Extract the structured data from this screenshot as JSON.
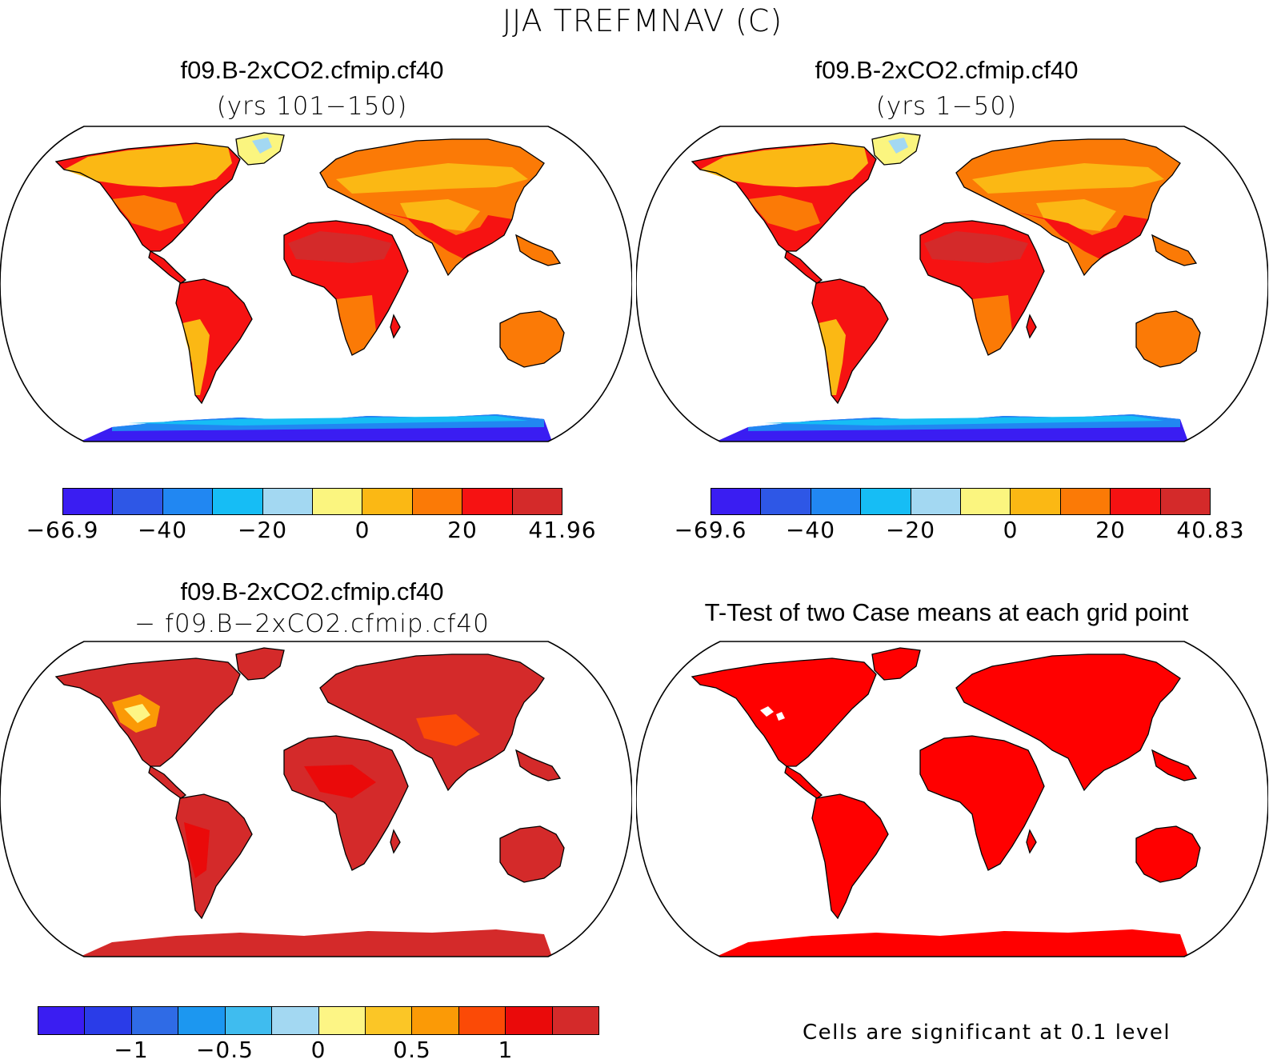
{
  "title": "JJA TREFMNAV (C)",
  "panels": [
    {
      "id": "case1",
      "line1": "f09.B-2xCO2.cfmip.cf40",
      "line2": "(yrs 101−150)",
      "palette": "field",
      "colorbar": {
        "colors": [
          "#3a1df2",
          "#2e57e6",
          "#2187f2",
          "#16bdf5",
          "#a3d8f2",
          "#fbf57f",
          "#fbb814",
          "#fb7a06",
          "#f61212",
          "#d42a2a"
        ],
        "ticks": [
          "−66.9",
          "−40",
          "−20",
          "0",
          "20",
          "41.96"
        ]
      }
    },
    {
      "id": "case2",
      "line1": "f09.B-2xCO2.cfmip.cf40",
      "line2": "(yrs 1−50)",
      "palette": "field",
      "colorbar": {
        "colors": [
          "#3a1df2",
          "#2e57e6",
          "#2187f2",
          "#16bdf5",
          "#a3d8f2",
          "#fbf57f",
          "#fbb814",
          "#fb7a06",
          "#f61212",
          "#d42a2a"
        ],
        "ticks": [
          "−69.6",
          "−40",
          "−20",
          "0",
          "20",
          "40.83"
        ]
      }
    },
    {
      "id": "difference",
      "line1": "f09.B-2xCO2.cfmip.cf40",
      "line2": "− f09.B−2xCO2.cfmip.cf40",
      "palette": "diff",
      "colorbar": {
        "colors": [
          "#3a1df2",
          "#2a3ce8",
          "#2f6be6",
          "#1c97f0",
          "#3fbcef",
          "#a3d8f2",
          "#fdf585",
          "#fbc626",
          "#fb9a06",
          "#fb4a06",
          "#ea0a0a",
          "#d42a2a"
        ],
        "ticks": [
          "−1",
          "−0.5",
          "0",
          "0.5",
          "1"
        ]
      }
    },
    {
      "id": "ttest",
      "line1": "T-Test of two Case means at each grid point",
      "palette": "ttest",
      "note": "Cells are significant at 0.1 level"
    }
  ],
  "legend_scale": {
    "field": [
      -60,
      -50,
      -40,
      -30,
      -20,
      -10,
      0,
      10,
      20,
      30
    ],
    "diff": [
      -1.25,
      -1,
      -0.75,
      -0.5,
      -0.25,
      0,
      0.25,
      0.5,
      0.75,
      1,
      1.25
    ]
  },
  "colors": {
    "land_hot": "#d42a2a",
    "significant": "#ff0000",
    "antarctica_cold": "#3a1df2"
  }
}
